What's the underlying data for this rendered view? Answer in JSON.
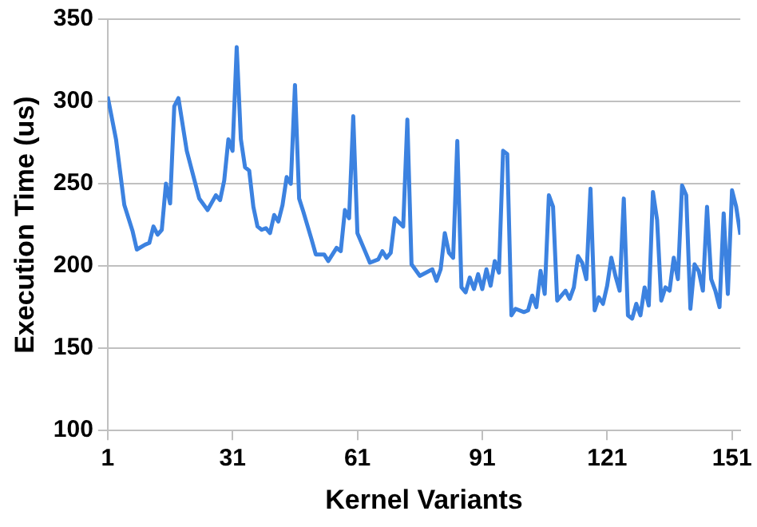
{
  "chart_data": {
    "type": "line",
    "xlabel": "Kernel Variants",
    "ylabel": "Execution Time (us)",
    "x": [
      1,
      3,
      5,
      7,
      8,
      10,
      11,
      12,
      13,
      14,
      15,
      16,
      17,
      18,
      20,
      23,
      25,
      27,
      28,
      29,
      30,
      31,
      32,
      33,
      34,
      35,
      36,
      37,
      38,
      39,
      40,
      41,
      42,
      43,
      44,
      45,
      46,
      47,
      48,
      50,
      51,
      53,
      54,
      56,
      57,
      58,
      59,
      60,
      61,
      63,
      64,
      66,
      67,
      68,
      69,
      70,
      72,
      73,
      74,
      76,
      79,
      80,
      81,
      82,
      83,
      84,
      85,
      86,
      87,
      88,
      89,
      90,
      91,
      92,
      93,
      94,
      95,
      96,
      97,
      98,
      99,
      101,
      102,
      103,
      104,
      105,
      106,
      107,
      108,
      109,
      111,
      112,
      113,
      114,
      115,
      116,
      117,
      118,
      119,
      120,
      121,
      122,
      123,
      124,
      125,
      126,
      127,
      128,
      129,
      130,
      131,
      132,
      133,
      134,
      135,
      136,
      137,
      138,
      139,
      140,
      141,
      142,
      143,
      144,
      145,
      146,
      147,
      148,
      149,
      150,
      151,
      152,
      153
    ],
    "series": [
      {
        "color": "#3c82e0",
        "values": [
          303,
          277,
          237,
          221,
          210,
          213,
          214,
          224,
          219,
          222,
          250,
          238,
          297,
          302,
          270,
          241,
          234,
          243,
          240,
          252,
          277,
          270,
          333,
          277,
          260,
          258,
          236,
          224,
          222,
          223,
          220,
          231,
          227,
          237,
          254,
          250,
          310,
          241,
          233,
          216,
          207,
          207,
          203,
          211,
          209,
          234,
          229,
          291,
          220,
          208,
          202,
          204,
          209,
          205,
          208,
          229,
          224,
          289,
          201,
          194,
          198,
          191,
          198,
          220,
          208,
          205,
          276,
          187,
          184,
          193,
          186,
          195,
          186,
          198,
          188,
          203,
          196,
          270,
          268,
          170,
          174,
          172,
          173,
          182,
          175,
          197,
          183,
          243,
          236,
          179,
          185,
          180,
          187,
          206,
          202,
          192,
          247,
          173,
          181,
          177,
          188,
          205,
          194,
          185,
          241,
          170,
          168,
          177,
          170,
          187,
          176,
          245,
          228,
          179,
          187,
          185,
          205,
          192,
          249,
          243,
          174,
          201,
          197,
          185,
          236,
          192,
          185,
          175,
          232,
          183,
          246,
          236,
          219
        ]
      }
    ],
    "xlim": [
      1,
      153
    ],
    "xticks": [
      1,
      31,
      61,
      91,
      121,
      151
    ],
    "ylim": [
      100,
      350
    ],
    "yticks": [
      100,
      150,
      200,
      250,
      300,
      350
    ],
    "grid": "y",
    "legend": false,
    "marker": "none",
    "line_style": "solid"
  }
}
